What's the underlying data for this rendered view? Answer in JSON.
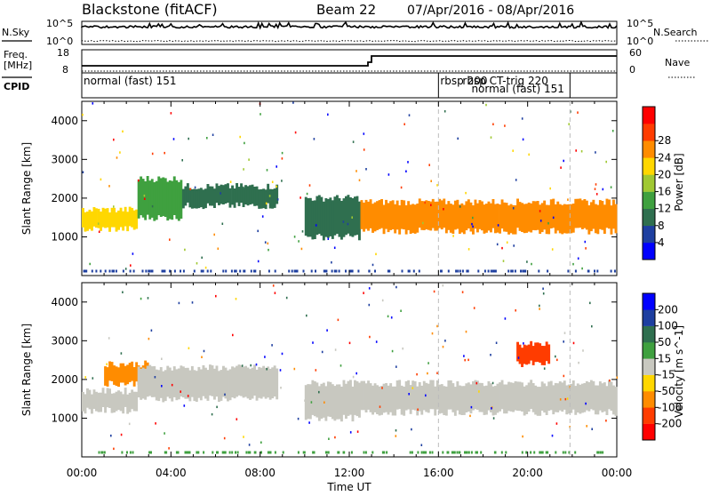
{
  "header": {
    "station": "Blackstone (fitACF)",
    "beam": "Beam 22",
    "date_range": "07/Apr/2016 - 08/Apr/2016"
  },
  "side_labels": {
    "nsky": "N.Sky",
    "nsearch": "N.Search",
    "freq": "Freq.",
    "freq_unit": "[MHz]",
    "nave": "Nave",
    "cpid": "CPID"
  },
  "strip_ticks": {
    "nsky_top": "10^5",
    "nsky_bottom": "10^0",
    "nsearch_top": "10^5",
    "nsearch_bottom": "10^0",
    "freq_top": "18",
    "freq_bottom": "8",
    "nave_top": "60",
    "nave_bottom": "0"
  },
  "cpid_labels": [
    {
      "text": "normal (fast) 151",
      "t": 0.0,
      "row": 0
    },
    {
      "text": "rbsp 200",
      "t": 16.0,
      "row": 0
    },
    {
      "text": "rbsp CT-trig 220",
      "t": 17.0,
      "row": 0
    },
    {
      "text": "normal (fast) 151",
      "t": 17.4,
      "row": 1
    }
  ],
  "colors": {
    "power_scale": [
      "#0000ff",
      "#1e3fa0",
      "#2f6f4f",
      "#3fa03f",
      "#a0c832",
      "#ffd700",
      "#ff8c00",
      "#ff3c00",
      "#ff0000"
    ],
    "velocity_scale": [
      "#0000ff",
      "#1e3fa0",
      "#2f6f4f",
      "#3fa03f",
      "#c8c8c0",
      "#ffd700",
      "#ff8c00",
      "#ff3c00",
      "#ff0000"
    ],
    "ground_scatter": "#c8c8c0"
  },
  "chart_data": [
    {
      "type": "heatmap",
      "panel": "power",
      "ylabel": "Slant Range [km]",
      "xlabel": "",
      "xlim": [
        0,
        24
      ],
      "ylim": [
        0,
        4500
      ],
      "yticks": [
        "1000",
        "2000",
        "3000",
        "4000"
      ],
      "colorbar_label": "Power [dB]",
      "colorbar_ticks": [
        "4",
        "8",
        "12",
        "16",
        "20",
        "24",
        "28"
      ],
      "bands": [
        {
          "t_start": 0,
          "t_end": 2.5,
          "range_low": 1200,
          "range_high": 1700,
          "level": "20"
        },
        {
          "t_start": 2.5,
          "t_end": 4.5,
          "range_low": 1500,
          "range_high": 2500,
          "level": "12"
        },
        {
          "t_start": 4.5,
          "t_end": 8.8,
          "range_low": 1800,
          "range_high": 2300,
          "level": "8"
        },
        {
          "t_start": 10.0,
          "t_end": 12.5,
          "range_low": 1000,
          "range_high": 2000,
          "level": "8"
        },
        {
          "t_start": 12.5,
          "t_end": 24,
          "range_low": 1150,
          "range_high": 1900,
          "level": "24"
        }
      ]
    },
    {
      "type": "heatmap",
      "panel": "velocity",
      "ylabel": "Slant Range [km]",
      "xlabel": "Time UT",
      "xlim": [
        0,
        24
      ],
      "ylim": [
        0,
        4500
      ],
      "yticks": [
        "1000",
        "2000",
        "3000",
        "4000"
      ],
      "xticks": [
        "00:00",
        "04:00",
        "08:00",
        "12:00",
        "16:00",
        "20:00",
        "00:00"
      ],
      "colorbar_label": "Velocity [m s^-1]",
      "colorbar_ticks": [
        "200",
        "100",
        "50",
        "15",
        "-15",
        "-50",
        "-100",
        "-200"
      ],
      "bands": [
        {
          "t_start": 0,
          "t_end": 2.5,
          "range_low": 1200,
          "range_high": 1700,
          "level": "ground"
        },
        {
          "t_start": 1,
          "t_end": 3,
          "range_low": 1900,
          "range_high": 2400,
          "level": "-50"
        },
        {
          "t_start": 2.5,
          "t_end": 8.8,
          "range_low": 1500,
          "range_high": 2300,
          "level": "ground"
        },
        {
          "t_start": 10.0,
          "t_end": 12.5,
          "range_low": 1000,
          "range_high": 1900,
          "level": "ground"
        },
        {
          "t_start": 12.5,
          "t_end": 24,
          "range_low": 1150,
          "range_high": 1900,
          "level": "ground"
        },
        {
          "t_start": 19.5,
          "t_end": 21,
          "range_low": 2400,
          "range_high": 2900,
          "level": "-100"
        }
      ]
    }
  ]
}
